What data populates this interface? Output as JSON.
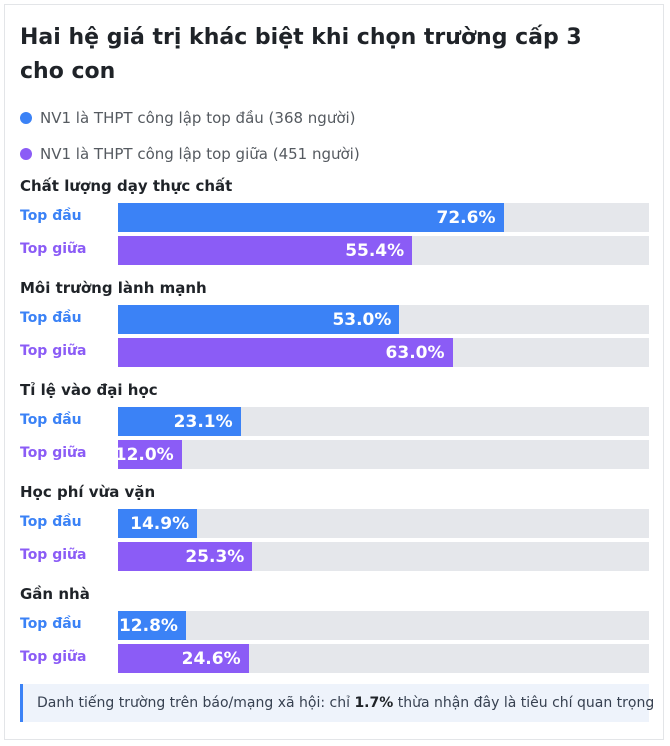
{
  "title": "Hai hệ giá trị khác biệt khi chọn trường cấp 3 cho con",
  "legend": [
    {
      "label": "NV1 là THPT công lập top đầu (368 người)",
      "color": "#3b82f6"
    },
    {
      "label": "NV1 là THPT công lập top giữa (451 người)",
      "color": "#8b5cf6"
    }
  ],
  "chart_data": {
    "type": "bar",
    "orientation": "horizontal",
    "xlim": [
      0,
      100
    ],
    "unit": "%",
    "categories": [
      "Chất lượng dạy thực chất",
      "Môi trường lành mạnh",
      "Tỉ lệ vào đại học",
      "Học phí vừa vặn",
      "Gần nhà"
    ],
    "series": [
      {
        "name": "Top đầu",
        "color": "#3b82f6",
        "values": [
          72.6,
          53.0,
          23.1,
          14.9,
          12.8
        ],
        "labels": [
          "72.6%",
          "53.0%",
          "23.1%",
          "14.9%",
          "12.8%"
        ]
      },
      {
        "name": "Top giữa",
        "color": "#8b5cf6",
        "values": [
          55.4,
          63.0,
          12.0,
          25.3,
          24.6
        ],
        "labels": [
          "55.4%",
          "63.0%",
          "12.0%",
          "25.3%",
          "24.6%"
        ]
      }
    ]
  },
  "note": {
    "prefix": "Danh tiếng trường trên báo/mạng xã hội: chỉ",
    "value": "1.7%",
    "suffix": "thừa nhận đây là tiêu chí quan trọng"
  }
}
